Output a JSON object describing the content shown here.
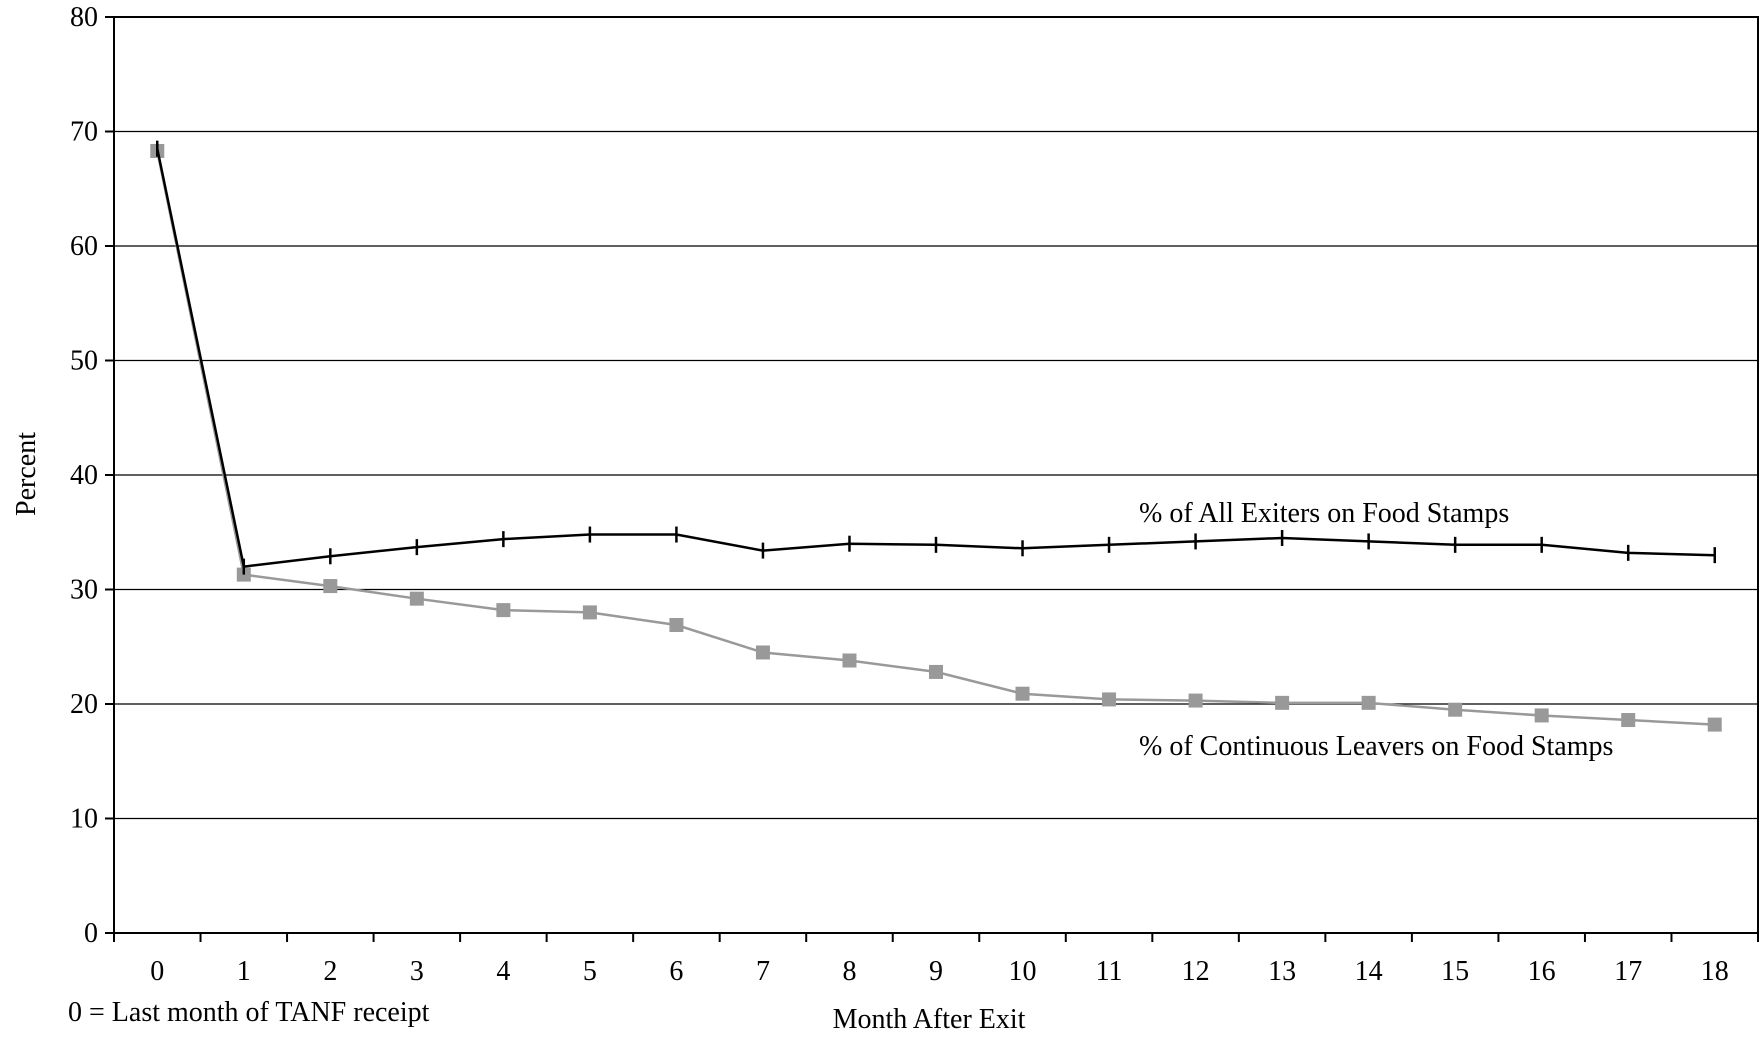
{
  "chart_data": {
    "type": "line",
    "title": "",
    "xlabel": "Month After Exit",
    "ylabel": "Percent",
    "x": [
      0,
      1,
      2,
      3,
      4,
      5,
      6,
      7,
      8,
      9,
      10,
      11,
      12,
      13,
      14,
      15,
      16,
      17,
      18
    ],
    "ylim": [
      0,
      80
    ],
    "yticks": [
      0,
      10,
      20,
      30,
      40,
      50,
      60,
      70,
      80
    ],
    "grid": true,
    "note": "0 = Last month of TANF receipt",
    "series": [
      {
        "name": "% of All Exiters on Food Stamps",
        "color": "#000000",
        "marker": "tick",
        "values": [
          68.5,
          32.0,
          32.9,
          33.7,
          34.4,
          34.8,
          34.8,
          33.4,
          34.0,
          33.9,
          33.6,
          33.9,
          34.2,
          34.5,
          34.2,
          33.9,
          33.9,
          33.2,
          33.0
        ]
      },
      {
        "name": "% of Continuous Leavers on Food Stamps",
        "color": "#999999",
        "marker": "square",
        "values": [
          68.3,
          31.3,
          30.3,
          29.2,
          28.2,
          28.0,
          26.9,
          24.5,
          23.8,
          22.8,
          20.9,
          20.4,
          20.3,
          20.1,
          20.1,
          19.5,
          19.0,
          18.6,
          18.2
        ]
      }
    ]
  }
}
